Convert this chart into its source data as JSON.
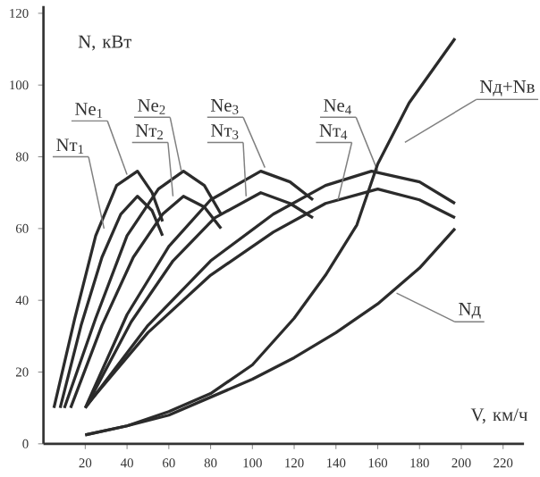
{
  "chart_data": {
    "type": "line",
    "xlabel": "V, км/ч",
    "ylabel": "N, кВт",
    "xlim": [
      0,
      230
    ],
    "ylim": [
      0,
      122
    ],
    "xticks": [
      20,
      40,
      60,
      80,
      100,
      120,
      140,
      160,
      180,
      200,
      220
    ],
    "yticks": [
      0,
      20,
      40,
      60,
      80,
      100,
      120
    ],
    "grid": false,
    "legend": false,
    "marker": "none",
    "line_style": "solid",
    "series": [
      {
        "name": "Ne$_{1}$",
        "color": "#2b2b2b",
        "x": [
          5,
          15,
          25,
          35,
          45,
          52,
          57
        ],
        "values": [
          10,
          35,
          58,
          72,
          76,
          70,
          62
        ]
      },
      {
        "name": "Nт$_{1}$",
        "color": "#2b2b2b",
        "x": [
          8,
          18,
          28,
          37,
          45,
          52,
          57
        ],
        "values": [
          10,
          33,
          52,
          64,
          69,
          65,
          58
        ]
      },
      {
        "name": "Ne$_{2}$",
        "color": "#2b2b2b",
        "x": [
          10,
          25,
          40,
          55,
          67,
          77,
          85
        ],
        "values": [
          10,
          35,
          58,
          71,
          76,
          72,
          64
        ]
      },
      {
        "name": "Nт$_{2}$",
        "color": "#2b2b2b",
        "x": [
          13,
          28,
          43,
          57,
          67,
          77,
          85
        ],
        "values": [
          10,
          33,
          52,
          64,
          69,
          66,
          60
        ]
      },
      {
        "name": "Ne$_{3}$",
        "color": "#2b2b2b",
        "x": [
          20,
          40,
          60,
          80,
          104,
          118,
          129
        ],
        "values": [
          10,
          36,
          55,
          68,
          76,
          73,
          68
        ]
      },
      {
        "name": "Nт$_{3}$",
        "color": "#2b2b2b",
        "x": [
          21,
          42,
          62,
          82,
          104,
          118,
          129
        ],
        "values": [
          11,
          34,
          51,
          63,
          70,
          67,
          63
        ]
      },
      {
        "name": "Ne$_{4}$",
        "color": "#2b2b2b",
        "x": [
          20,
          50,
          80,
          110,
          135,
          157,
          180,
          197
        ],
        "values": [
          10,
          33,
          51,
          64,
          72,
          76,
          73,
          67
        ]
      },
      {
        "name": "Nт$_{4}$",
        "color": "#2b2b2b",
        "x": [
          21,
          50,
          80,
          110,
          135,
          160,
          180,
          197
        ],
        "values": [
          11,
          31,
          47,
          59,
          67,
          71,
          68,
          63
        ]
      },
      {
        "name": "Nд+Nв",
        "color": "#2b2b2b",
        "x": [
          20,
          40,
          60,
          80,
          100,
          120,
          135,
          150,
          160,
          175,
          197
        ],
        "values": [
          2.5,
          5,
          9,
          14,
          22,
          35,
          47,
          61,
          78,
          95,
          113
        ]
      },
      {
        "name": "Nд",
        "color": "#2b2b2b",
        "x": [
          20,
          40,
          60,
          80,
          100,
          120,
          140,
          160,
          180,
          197
        ],
        "values": [
          2.5,
          5,
          8,
          13,
          18,
          24,
          31,
          39,
          49,
          60
        ]
      }
    ]
  }
}
